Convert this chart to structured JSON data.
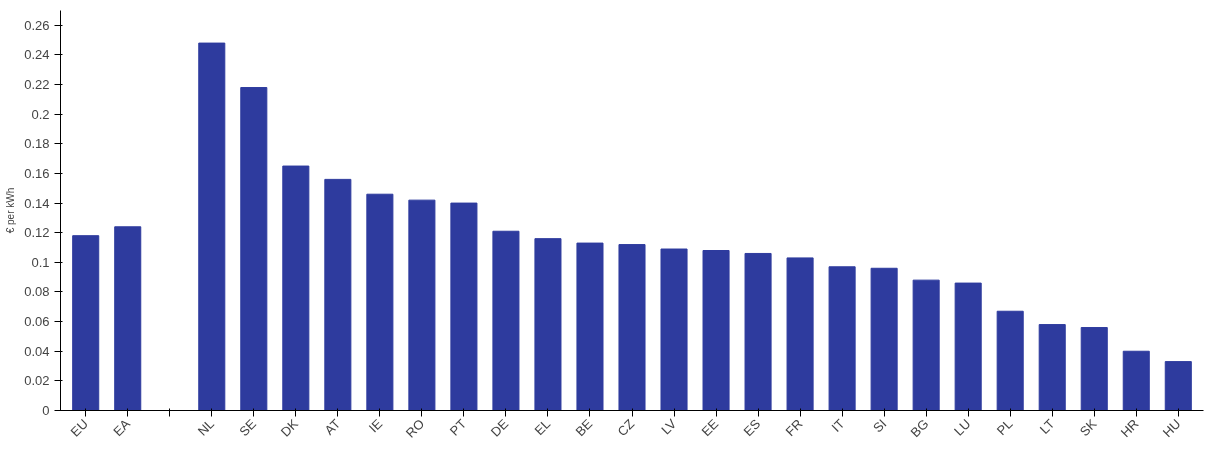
{
  "chart_data": {
    "type": "bar",
    "ylabel": "€ per kWh",
    "categories": [
      "EU",
      "EA",
      null,
      "NL",
      "SE",
      "DK",
      "AT",
      "IE",
      "RO",
      "PT",
      "DE",
      "EL",
      "BE",
      "CZ",
      "LV",
      "EE",
      "ES",
      "FR",
      "IT",
      "SI",
      "BG",
      "LU",
      "PL",
      "LT",
      "SK",
      "HR",
      "HU"
    ],
    "values": [
      0.118,
      0.124,
      null,
      0.248,
      0.218,
      0.165,
      0.156,
      0.146,
      0.142,
      0.14,
      0.121,
      0.116,
      0.113,
      0.112,
      0.109,
      0.108,
      0.106,
      0.103,
      0.097,
      0.096,
      0.088,
      0.086,
      0.067,
      0.058,
      0.056,
      0.04,
      0.033
    ],
    "color": "#2e3b9e",
    "ylim": [
      0,
      0.27
    ],
    "yticks": [
      0,
      0.02,
      0.04,
      0.06,
      0.08,
      0.1,
      0.12,
      0.14,
      0.16,
      0.18,
      0.2,
      0.22,
      0.24,
      0.26
    ],
    "grid": false
  }
}
